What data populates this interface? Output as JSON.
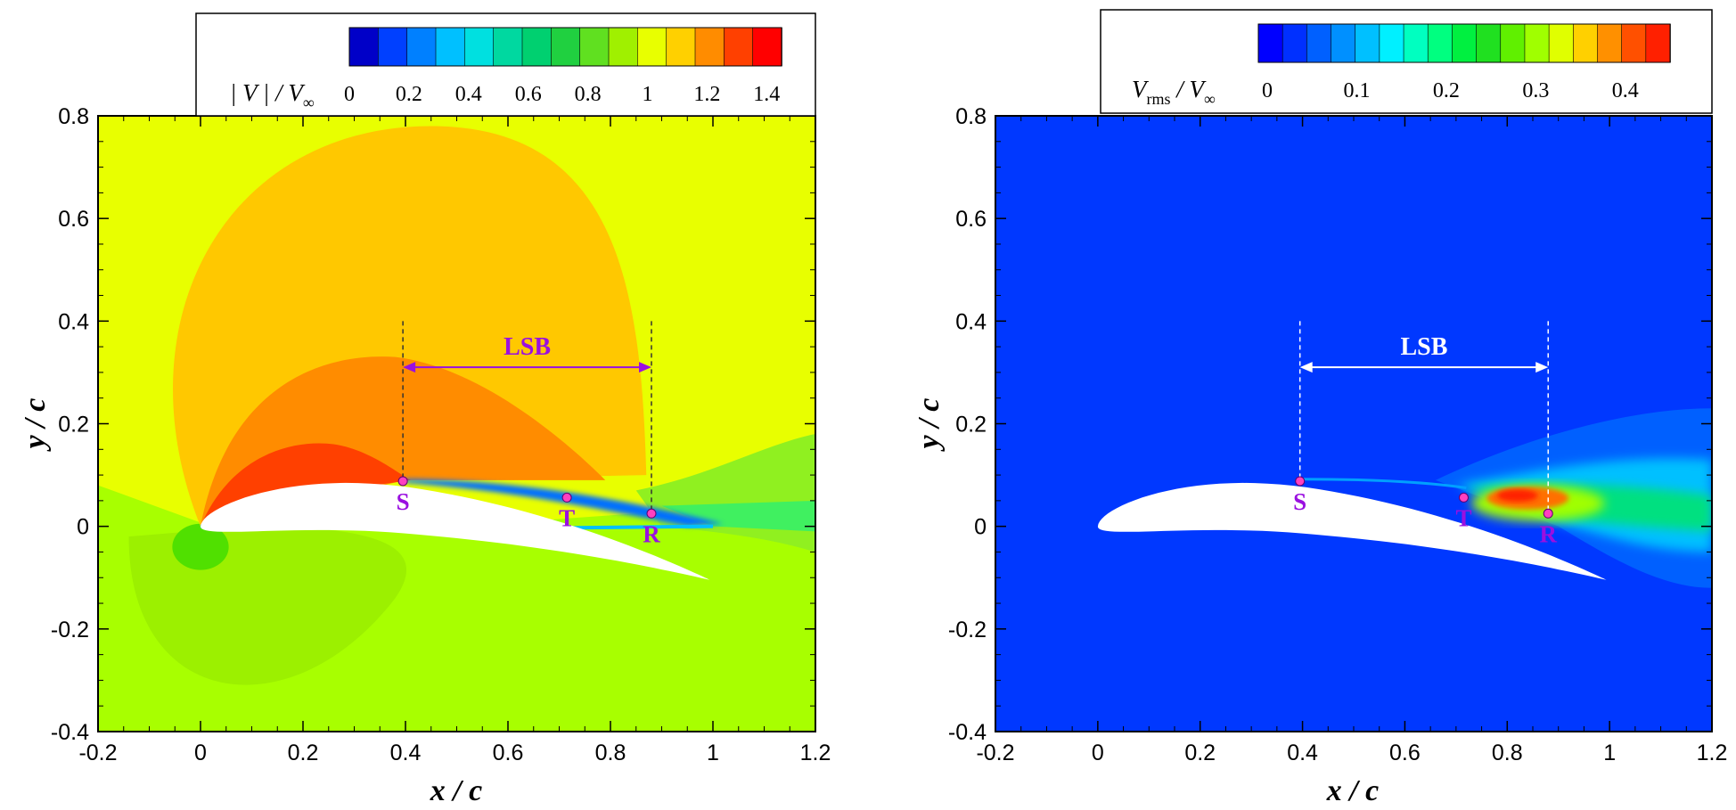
{
  "chart_data": [
    {
      "type": "heatmap",
      "field": "mean velocity magnitude contour",
      "xlabel": "x / c",
      "ylabel": "y / c",
      "xlim": [
        -0.2,
        1.2
      ],
      "ylim": [
        -0.4,
        0.8
      ],
      "xticks": [
        "-0.2",
        "0",
        "0.2",
        "0.4",
        "0.6",
        "0.8",
        "1",
        "1.2"
      ],
      "yticks": [
        "-0.4",
        "-0.2",
        "0",
        "0.2",
        "0.4",
        "0.6",
        "0.8"
      ],
      "colorbar": {
        "label_main": "| V | / V",
        "label_sub": "∞",
        "ticks": [
          "0",
          "0.2",
          "0.4",
          "0.6",
          "0.8",
          "1",
          "1.2",
          "1.4"
        ],
        "tick_values": [
          0,
          0.2,
          0.4,
          0.6,
          0.8,
          1.0,
          1.2,
          1.4
        ],
        "range": [
          0,
          1.45
        ],
        "colors": [
          "#0000c8",
          "#0040ff",
          "#0080ff",
          "#00c0ff",
          "#00e0e0",
          "#00d8a0",
          "#00d070",
          "#20d040",
          "#60e020",
          "#a0f000",
          "#e8ff00",
          "#ffd000",
          "#ff8c00",
          "#ff4000",
          "#ff0000"
        ]
      },
      "markers": [
        {
          "label": "S",
          "x": 0.395,
          "y": 0.088
        },
        {
          "label": "T",
          "x": 0.715,
          "y": 0.056
        },
        {
          "label": "R",
          "x": 0.88,
          "y": 0.025
        }
      ],
      "lsb": {
        "label": "LSB",
        "x_start": 0.395,
        "x_end": 0.88,
        "y": 0.31
      },
      "annotation_color": "#9a10e0",
      "background_colors": {
        "freestream": "#e8ff00",
        "suction_lobe": "#ffc800",
        "inner_lobe": "#ff8c00",
        "peak_lobe": "#ff4000",
        "lower_region": "#a8ff00",
        "stagnation": "#50e000",
        "wake": "#40f060"
      }
    },
    {
      "type": "heatmap",
      "field": "rms velocity fluctuation contour",
      "xlabel": "x / c",
      "ylabel": "y / c",
      "xlim": [
        -0.2,
        1.2
      ],
      "ylim": [
        -0.4,
        0.8
      ],
      "xticks": [
        "-0.2",
        "0",
        "0.2",
        "0.4",
        "0.6",
        "0.8",
        "1",
        "1.2"
      ],
      "yticks": [
        "-0.4",
        "-0.2",
        "0",
        "0.2",
        "0.4",
        "0.6",
        "0.8"
      ],
      "colorbar": {
        "label_main": "V",
        "label_sub1": "rms",
        "label_mid": " / V",
        "label_sub2": "∞",
        "ticks": [
          "0",
          "0.1",
          "0.2",
          "0.3",
          "0.4"
        ],
        "tick_values": [
          0,
          0.1,
          0.2,
          0.3,
          0.4
        ],
        "range": [
          -0.01,
          0.45
        ],
        "colors": [
          "#0000ff",
          "#0030ff",
          "#0060ff",
          "#0090ff",
          "#00c0ff",
          "#00f0ff",
          "#00ffc0",
          "#00ff80",
          "#00f040",
          "#20e020",
          "#60f000",
          "#a0ff00",
          "#e0ff00",
          "#ffd000",
          "#ff9000",
          "#ff5000",
          "#ff2000"
        ]
      },
      "markers": [
        {
          "label": "S",
          "x": 0.395,
          "y": 0.088
        },
        {
          "label": "T",
          "x": 0.715,
          "y": 0.056
        },
        {
          "label": "R",
          "x": 0.88,
          "y": 0.025
        }
      ],
      "lsb": {
        "label": "LSB",
        "x_start": 0.395,
        "x_end": 0.88,
        "y": 0.31
      },
      "annotation_color": "#9a10e0",
      "background_colors": {
        "freestream": "#0038ff",
        "wake_outer": "#0060ff",
        "wake_mid": "#00c0ff",
        "wake_inner": "#00e080",
        "peak_outer": "#a0ff00",
        "peak": "#ff7000",
        "peak_core": "#ff2000"
      }
    }
  ]
}
